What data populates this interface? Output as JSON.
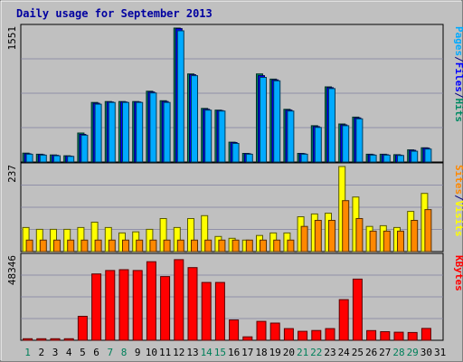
{
  "chart_data": {
    "type": "bar",
    "title": "Daily usage for September 2013",
    "categories": [
      "1",
      "2",
      "3",
      "4",
      "5",
      "6",
      "7",
      "8",
      "9",
      "10",
      "11",
      "12",
      "13",
      "14",
      "15",
      "16",
      "17",
      "18",
      "19",
      "20",
      "21",
      "22",
      "23",
      "24",
      "25",
      "26",
      "27",
      "28",
      "29",
      "30",
      "31"
    ],
    "weekend_days": [
      "1",
      "7",
      "8",
      "14",
      "15",
      "21",
      "22",
      "28",
      "29"
    ],
    "panels": [
      {
        "name": "pages-files-hits",
        "ymax_label": "1551",
        "ymax": 1551,
        "legend": [
          {
            "text": "Pages",
            "color": "#00aaff"
          },
          {
            "text": "/",
            "color": "#000080"
          },
          {
            "text": "Files",
            "color": "#0000ff"
          },
          {
            "text": "/",
            "color": "#000080"
          },
          {
            "text": "Hits",
            "color": "#008a63"
          }
        ],
        "series": [
          {
            "name": "Hits",
            "color": "#008a63",
            "values": [
              103,
              90,
              82,
              72,
              335,
              690,
              700,
              700,
              700,
              820,
              710,
              1551,
              1020,
              620,
              600,
              230,
              100,
              1020,
              960,
              610,
              100,
              420,
              870,
              440,
              520,
              90,
              90,
              85,
              140,
              165,
              0
            ]
          },
          {
            "name": "Files",
            "color": "#0000ff",
            "values": [
              95,
              85,
              78,
              68,
              320,
              680,
              695,
              695,
              695,
              810,
              700,
              1545,
              1010,
              610,
              595,
              225,
              95,
              1000,
              950,
              600,
              95,
              410,
              860,
              430,
              510,
              85,
              85,
              80,
              135,
              160,
              0
            ]
          },
          {
            "name": "Pages",
            "color": "#00aaff",
            "values": [
              90,
              80,
              72,
              65,
              310,
              670,
              690,
              690,
              690,
              800,
              690,
              1520,
              1000,
              600,
              590,
              215,
              90,
              980,
              940,
              590,
              90,
              400,
              850,
              420,
              500,
              80,
              80,
              75,
              125,
              150,
              0
            ]
          }
        ]
      },
      {
        "name": "sites-visits",
        "ymax_label": "237",
        "ymax": 237,
        "legend": [
          {
            "text": "Sites",
            "color": "#ff8800"
          },
          {
            "text": "/",
            "color": "#000080"
          },
          {
            "text": "Visits",
            "color": "#ffff00"
          }
        ],
        "series": [
          {
            "name": "Visits",
            "color": "#ffff00",
            "values": [
              67,
              62,
              62,
              62,
              67,
              82,
              67,
              52,
              55,
              62,
              92,
              67,
              92,
              100,
              42,
              37,
              32,
              45,
              52,
              52,
              97,
              105,
              107,
              237,
              152,
              70,
              72,
              67,
              112,
              162,
              0
            ]
          },
          {
            "name": "Sites",
            "color": "#ff8800",
            "values": [
              32,
              32,
              32,
              32,
              32,
              32,
              32,
              32,
              32,
              32,
              32,
              32,
              32,
              32,
              32,
              32,
              32,
              32,
              32,
              32,
              70,
              87,
              87,
              142,
              92,
              57,
              57,
              57,
              87,
              117,
              0
            ]
          }
        ]
      },
      {
        "name": "kbytes",
        "ymax_label": "48346",
        "ymax": 48346,
        "legend": [
          {
            "text": "KBytes",
            "color": "#ff0000"
          }
        ],
        "series": [
          {
            "name": "KBytes",
            "color": "#ff0000",
            "values": [
              900,
              900,
              900,
              900,
              13900,
              38500,
              40500,
              41000,
              40500,
              45600,
              37000,
              46800,
              42200,
              33600,
              33600,
              11800,
              2000,
              11000,
              10000,
              6800,
              5200,
              5700,
              6800,
              23600,
              35500,
              5600,
              5000,
              4700,
              4500,
              6900,
              0
            ]
          }
        ]
      }
    ]
  }
}
